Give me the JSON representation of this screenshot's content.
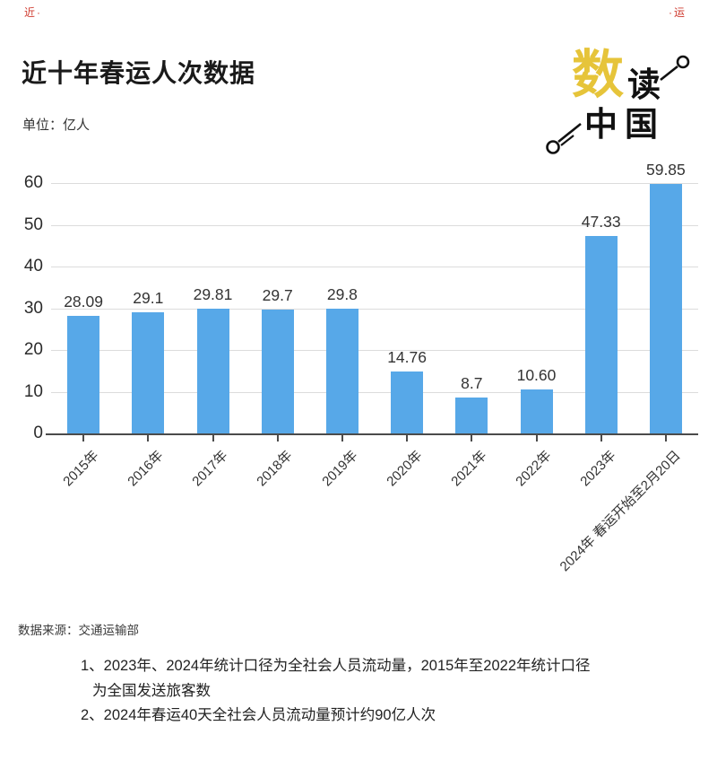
{
  "corner_marks": {
    "top_left": "近·",
    "top_right": "·运"
  },
  "header": {
    "title": "近十年春运人次数据",
    "unit_label": "单位：亿人"
  },
  "logo": {
    "char_1": "数",
    "char_2": "读",
    "char_3": "中国",
    "accent_color": "#e6c43a",
    "text_color": "#111111"
  },
  "chart_data": {
    "type": "bar",
    "title": "近十年春运人次数据",
    "unit": "亿人",
    "categories": [
      "2015年",
      "2016年",
      "2017年",
      "2018年",
      "2019年",
      "2020年",
      "2021年",
      "2022年",
      "2023年",
      "2024年 春运开始至2月20日"
    ],
    "values": [
      28.09,
      29.1,
      29.81,
      29.7,
      29.8,
      14.76,
      8.7,
      10.6,
      47.33,
      59.85
    ],
    "value_labels": [
      "28.09",
      "29.1",
      "29.81",
      "29.7",
      "29.8",
      "14.76",
      "8.7",
      "10.60",
      "47.33",
      "59.85"
    ],
    "ylim": [
      0,
      60
    ],
    "yticks": [
      0,
      10,
      20,
      30,
      40,
      50,
      60
    ],
    "grid": true,
    "legend": null,
    "bar_color": "#57a8e8",
    "xlabel": "",
    "ylabel": "单位：亿人"
  },
  "footer": {
    "source": "数据来源：交通运输部",
    "notes": [
      {
        "text": "1、2023年、2024年统计口径为全社会人员流动量，2015年至2022年统计口径",
        "indent": false
      },
      {
        "text": "为全国发送旅客数",
        "indent": true
      },
      {
        "text": "2、2024年春运40天全社会人员流动量预计约90亿人次",
        "indent": false
      }
    ]
  }
}
